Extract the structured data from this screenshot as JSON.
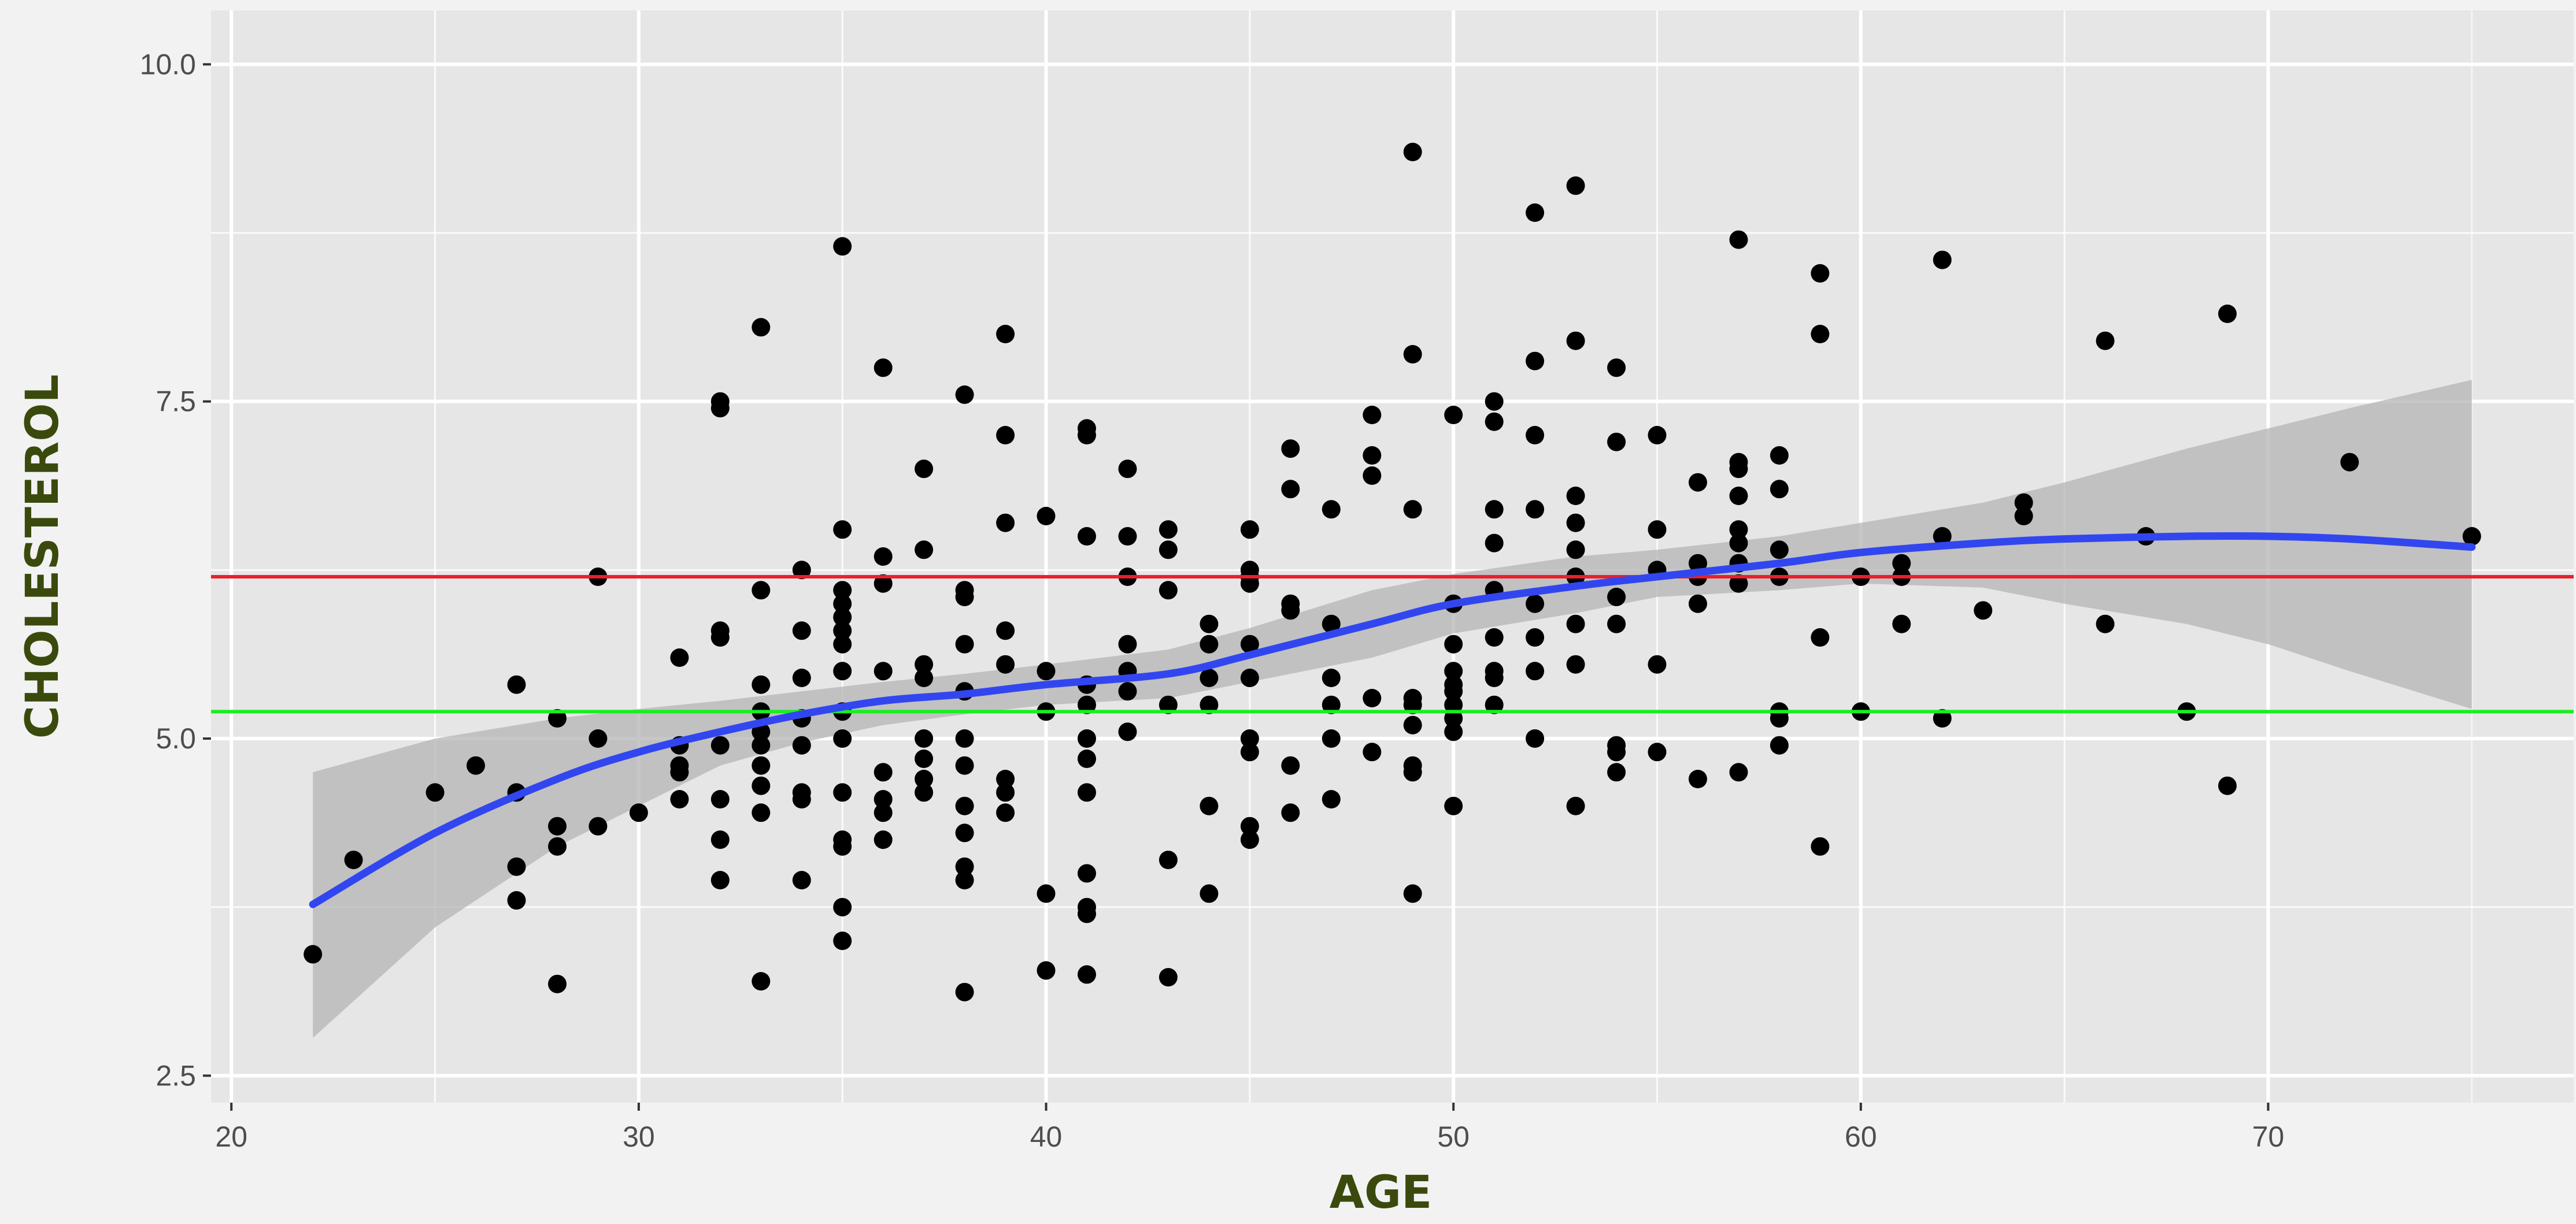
{
  "chart_data": {
    "type": "scatter",
    "title": "",
    "xlabel": "AGE",
    "ylabel": "CHOLESTEROL",
    "xlim": [
      19.5,
      77.5
    ],
    "ylim": [
      2.3,
      10.4
    ],
    "x_ticks": [
      20,
      30,
      40,
      50,
      60,
      70
    ],
    "x_tick_labels": [
      "20",
      "30",
      "40",
      "50",
      "60",
      "70"
    ],
    "y_ticks": [
      2.5,
      5.0,
      7.5,
      10.0
    ],
    "y_tick_labels": [
      "2.5",
      "5.0",
      "7.5",
      "10.0"
    ],
    "grid": true,
    "legend": "none",
    "colors": {
      "panel": "#e6e6e6",
      "grid": "#ffffff",
      "points": "#000000",
      "smooth": "#3246f0",
      "ribbon": "#b4b4b4",
      "line_high": "#e8202a",
      "line_low": "#1aee20",
      "axis_title": "#3a4a0c"
    },
    "hlines": [
      {
        "y": 6.2,
        "color": "#e8202a"
      },
      {
        "y": 5.2,
        "color": "#1aee20"
      }
    ],
    "smooth": {
      "x": [
        22,
        25,
        28,
        30,
        32,
        34,
        36,
        38,
        40,
        43,
        45,
        48,
        50,
        53,
        55,
        58,
        60,
        63,
        65,
        68,
        70,
        72,
        75
      ],
      "y": [
        3.77,
        4.3,
        4.7,
        4.9,
        5.05,
        5.18,
        5.28,
        5.33,
        5.4,
        5.48,
        5.62,
        5.85,
        6.0,
        6.13,
        6.2,
        6.3,
        6.38,
        6.45,
        6.48,
        6.5,
        6.5,
        6.48,
        6.42
      ],
      "lower": [
        2.78,
        3.6,
        4.2,
        4.5,
        4.8,
        4.97,
        5.1,
        5.18,
        5.25,
        5.3,
        5.42,
        5.6,
        5.78,
        5.93,
        6.05,
        6.1,
        6.15,
        6.12,
        6.0,
        5.85,
        5.7,
        5.5,
        5.22
      ],
      "upper": [
        4.75,
        5.0,
        5.15,
        5.22,
        5.28,
        5.35,
        5.42,
        5.48,
        5.55,
        5.66,
        5.82,
        6.1,
        6.22,
        6.35,
        6.4,
        6.5,
        6.6,
        6.75,
        6.9,
        7.15,
        7.3,
        7.45,
        7.66
      ]
    },
    "points": [
      [
        22,
        3.4
      ],
      [
        23,
        4.1
      ],
      [
        25,
        4.6
      ],
      [
        26,
        4.8
      ],
      [
        27,
        5.4
      ],
      [
        27,
        4.6
      ],
      [
        27,
        4.05
      ],
      [
        27,
        3.8
      ],
      [
        28,
        5.15
      ],
      [
        28,
        4.35
      ],
      [
        28,
        4.2
      ],
      [
        28,
        3.18
      ],
      [
        29,
        6.2
      ],
      [
        29,
        5.0
      ],
      [
        29,
        4.35
      ],
      [
        30,
        4.45
      ],
      [
        31,
        5.6
      ],
      [
        31,
        4.95
      ],
      [
        31,
        4.8
      ],
      [
        31,
        4.75
      ],
      [
        31,
        4.55
      ],
      [
        32,
        7.5
      ],
      [
        32,
        7.45
      ],
      [
        32,
        5.8
      ],
      [
        32,
        5.75
      ],
      [
        32,
        4.95
      ],
      [
        32,
        4.55
      ],
      [
        32,
        4.25
      ],
      [
        32,
        3.95
      ],
      [
        33,
        8.05
      ],
      [
        33,
        6.1
      ],
      [
        33,
        5.4
      ],
      [
        33,
        5.2
      ],
      [
        33,
        5.05
      ],
      [
        33,
        4.95
      ],
      [
        33,
        4.8
      ],
      [
        33,
        4.65
      ],
      [
        33,
        4.45
      ],
      [
        33,
        3.2
      ],
      [
        34,
        6.25
      ],
      [
        34,
        5.8
      ],
      [
        34,
        5.45
      ],
      [
        34,
        5.15
      ],
      [
        34,
        4.95
      ],
      [
        34,
        4.6
      ],
      [
        34,
        4.55
      ],
      [
        34,
        3.95
      ],
      [
        35,
        8.65
      ],
      [
        35,
        6.55
      ],
      [
        35,
        6.1
      ],
      [
        35,
        6.0
      ],
      [
        35,
        5.9
      ],
      [
        35,
        5.8
      ],
      [
        35,
        5.7
      ],
      [
        35,
        5.5
      ],
      [
        35,
        5.2
      ],
      [
        35,
        5.0
      ],
      [
        35,
        4.6
      ],
      [
        35,
        4.25
      ],
      [
        35,
        4.2
      ],
      [
        35,
        3.75
      ],
      [
        35,
        3.5
      ],
      [
        36,
        7.75
      ],
      [
        36,
        6.35
      ],
      [
        36,
        6.15
      ],
      [
        36,
        5.5
      ],
      [
        36,
        4.75
      ],
      [
        36,
        4.55
      ],
      [
        36,
        4.45
      ],
      [
        36,
        4.25
      ],
      [
        37,
        7.0
      ],
      [
        37,
        6.4
      ],
      [
        37,
        5.55
      ],
      [
        37,
        5.45
      ],
      [
        37,
        5.0
      ],
      [
        37,
        4.85
      ],
      [
        37,
        4.7
      ],
      [
        37,
        4.6
      ],
      [
        38,
        7.55
      ],
      [
        38,
        6.1
      ],
      [
        38,
        6.05
      ],
      [
        38,
        5.7
      ],
      [
        38,
        5.35
      ],
      [
        38,
        5.0
      ],
      [
        38,
        4.8
      ],
      [
        38,
        4.5
      ],
      [
        38,
        4.3
      ],
      [
        38,
        4.05
      ],
      [
        38,
        3.95
      ],
      [
        38,
        3.12
      ],
      [
        39,
        8.0
      ],
      [
        39,
        7.25
      ],
      [
        39,
        6.6
      ],
      [
        39,
        5.8
      ],
      [
        39,
        5.55
      ],
      [
        39,
        4.7
      ],
      [
        39,
        4.6
      ],
      [
        39,
        4.45
      ],
      [
        40,
        6.65
      ],
      [
        40,
        5.5
      ],
      [
        40,
        5.2
      ],
      [
        40,
        3.85
      ],
      [
        40,
        3.28
      ],
      [
        41,
        7.3
      ],
      [
        41,
        7.25
      ],
      [
        41,
        6.5
      ],
      [
        41,
        5.4
      ],
      [
        41,
        5.25
      ],
      [
        41,
        5.0
      ],
      [
        41,
        4.85
      ],
      [
        41,
        4.6
      ],
      [
        41,
        4.0
      ],
      [
        41,
        3.75
      ],
      [
        41,
        3.7
      ],
      [
        41,
        3.25
      ],
      [
        42,
        7.0
      ],
      [
        42,
        6.5
      ],
      [
        42,
        6.2
      ],
      [
        42,
        5.7
      ],
      [
        42,
        5.5
      ],
      [
        42,
        5.35
      ],
      [
        42,
        5.05
      ],
      [
        43,
        6.55
      ],
      [
        43,
        6.4
      ],
      [
        43,
        6.1
      ],
      [
        43,
        5.25
      ],
      [
        43,
        4.1
      ],
      [
        43,
        3.23
      ],
      [
        44,
        5.85
      ],
      [
        44,
        5.7
      ],
      [
        44,
        5.45
      ],
      [
        44,
        5.25
      ],
      [
        44,
        4.5
      ],
      [
        44,
        3.85
      ],
      [
        45,
        6.55
      ],
      [
        45,
        6.25
      ],
      [
        45,
        6.2
      ],
      [
        45,
        6.15
      ],
      [
        45,
        5.7
      ],
      [
        45,
        5.45
      ],
      [
        45,
        5.0
      ],
      [
        45,
        4.9
      ],
      [
        45,
        4.35
      ],
      [
        45,
        4.25
      ],
      [
        46,
        7.15
      ],
      [
        46,
        6.85
      ],
      [
        46,
        6.0
      ],
      [
        46,
        5.95
      ],
      [
        46,
        4.8
      ],
      [
        46,
        4.45
      ],
      [
        47,
        6.7
      ],
      [
        47,
        5.85
      ],
      [
        47,
        5.45
      ],
      [
        47,
        5.25
      ],
      [
        47,
        5.0
      ],
      [
        47,
        4.55
      ],
      [
        48,
        7.4
      ],
      [
        48,
        7.1
      ],
      [
        48,
        6.95
      ],
      [
        48,
        5.3
      ],
      [
        48,
        4.9
      ],
      [
        49,
        9.35
      ],
      [
        49,
        7.85
      ],
      [
        49,
        6.7
      ],
      [
        49,
        5.3
      ],
      [
        49,
        5.25
      ],
      [
        49,
        5.1
      ],
      [
        49,
        4.8
      ],
      [
        49,
        4.75
      ],
      [
        49,
        3.85
      ],
      [
        50,
        7.4
      ],
      [
        50,
        6.0
      ],
      [
        50,
        5.7
      ],
      [
        50,
        5.5
      ],
      [
        50,
        5.4
      ],
      [
        50,
        5.35
      ],
      [
        50,
        5.25
      ],
      [
        50,
        5.15
      ],
      [
        50,
        5.05
      ],
      [
        50,
        4.5
      ],
      [
        51,
        7.5
      ],
      [
        51,
        7.35
      ],
      [
        51,
        6.7
      ],
      [
        51,
        6.45
      ],
      [
        51,
        6.1
      ],
      [
        51,
        5.75
      ],
      [
        51,
        5.5
      ],
      [
        51,
        5.45
      ],
      [
        51,
        5.25
      ],
      [
        52,
        8.9
      ],
      [
        52,
        7.8
      ],
      [
        52,
        7.25
      ],
      [
        52,
        6.7
      ],
      [
        52,
        6.0
      ],
      [
        52,
        5.75
      ],
      [
        52,
        5.5
      ],
      [
        52,
        5.0
      ],
      [
        53,
        9.1
      ],
      [
        53,
        7.95
      ],
      [
        53,
        6.8
      ],
      [
        53,
        6.6
      ],
      [
        53,
        6.4
      ],
      [
        53,
        6.2
      ],
      [
        53,
        5.85
      ],
      [
        53,
        5.55
      ],
      [
        53,
        4.5
      ],
      [
        54,
        7.75
      ],
      [
        54,
        7.2
      ],
      [
        54,
        6.05
      ],
      [
        54,
        5.85
      ],
      [
        54,
        4.95
      ],
      [
        54,
        4.9
      ],
      [
        54,
        4.75
      ],
      [
        55,
        7.25
      ],
      [
        55,
        6.55
      ],
      [
        55,
        6.25
      ],
      [
        55,
        5.55
      ],
      [
        55,
        4.9
      ],
      [
        56,
        6.9
      ],
      [
        56,
        6.3
      ],
      [
        56,
        6.2
      ],
      [
        56,
        6.0
      ],
      [
        56,
        4.7
      ],
      [
        57,
        8.7
      ],
      [
        57,
        7.05
      ],
      [
        57,
        7.0
      ],
      [
        57,
        6.8
      ],
      [
        57,
        6.55
      ],
      [
        57,
        6.45
      ],
      [
        57,
        6.3
      ],
      [
        57,
        6.15
      ],
      [
        57,
        4.75
      ],
      [
        58,
        7.1
      ],
      [
        58,
        6.85
      ],
      [
        58,
        6.4
      ],
      [
        58,
        6.2
      ],
      [
        58,
        5.2
      ],
      [
        58,
        5.15
      ],
      [
        58,
        4.95
      ],
      [
        59,
        8.45
      ],
      [
        59,
        8.0
      ],
      [
        59,
        5.75
      ],
      [
        59,
        4.2
      ],
      [
        60,
        6.2
      ],
      [
        60,
        5.2
      ],
      [
        61,
        6.3
      ],
      [
        61,
        6.2
      ],
      [
        61,
        5.85
      ],
      [
        62,
        8.55
      ],
      [
        62,
        6.5
      ],
      [
        62,
        5.15
      ],
      [
        63,
        5.95
      ],
      [
        64,
        6.75
      ],
      [
        64,
        6.65
      ],
      [
        66,
        7.95
      ],
      [
        66,
        5.85
      ],
      [
        67,
        6.5
      ],
      [
        68,
        5.2
      ],
      [
        69,
        8.15
      ],
      [
        69,
        4.65
      ],
      [
        72,
        7.05
      ],
      [
        75,
        6.5
      ]
    ]
  }
}
